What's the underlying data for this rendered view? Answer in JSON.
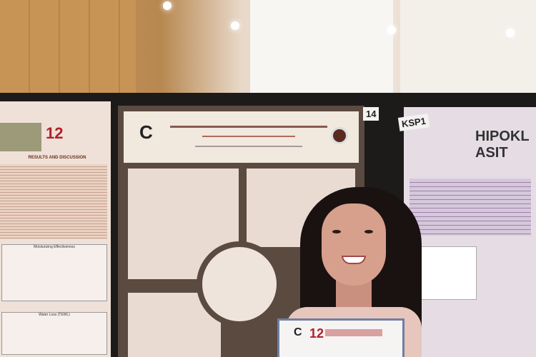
{
  "photo": {
    "left_poster": {
      "logo_number": "12",
      "section_heading": "RESULTS AND DISCUSSION",
      "chart1_title": "Moisturizing Effectiveness",
      "chart2_title": "Water Loss (TEWL)"
    },
    "main_poster": {
      "logo_letter": "C"
    },
    "board_number": "14",
    "right_poster": {
      "tag": "KSP1",
      "title_line1": "HIPOKL",
      "title_line2": "ASIT"
    },
    "certificate": {
      "logo_letter": "C",
      "logo_number": "12"
    }
  }
}
